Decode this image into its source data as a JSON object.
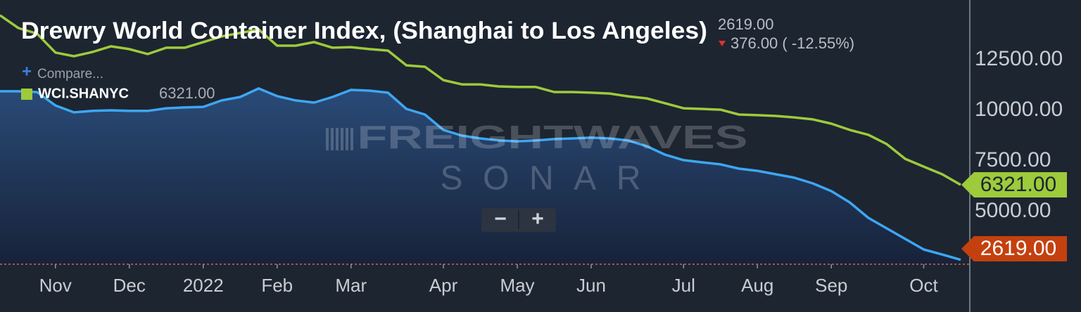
{
  "chart_data": {
    "type": "line",
    "title": "Drewry World Container Index, (Shanghai to Los Angeles)",
    "header_value": "2619.00",
    "change": "376.00 ( -12.55%)",
    "compare": "Compare...",
    "watermark": [
      "FREIGHTWAVES",
      "SONAR"
    ],
    "zoom_controls": [
      "−",
      "+"
    ],
    "categories": [
      null,
      null,
      null,
      "Nov",
      null,
      null,
      null,
      "Dec",
      null,
      null,
      null,
      "2022",
      null,
      null,
      null,
      "Feb",
      null,
      null,
      null,
      "Mar",
      null,
      null,
      null,
      null,
      "Apr",
      null,
      null,
      null,
      "May",
      null,
      null,
      null,
      "Jun",
      null,
      null,
      null,
      null,
      "Jul",
      null,
      null,
      null,
      "Aug",
      null,
      null,
      null,
      "Sep",
      null,
      null,
      null,
      null,
      "Oct",
      null,
      null
    ],
    "series": [
      {
        "name": "Drewry World Container Index, (Shanghai to Los Angeles)",
        "color": "#3ea6f2",
        "area": true,
        "last_value_label": "2619.00",
        "tag_color": "#c4400f",
        "values": [
          10940,
          10940,
          10900,
          10240,
          9900,
          9970,
          10000,
          9970,
          9970,
          10100,
          10140,
          10170,
          10490,
          10660,
          11080,
          10700,
          10490,
          10380,
          10660,
          11010,
          10970,
          10870,
          10070,
          9790,
          9030,
          8750,
          8610,
          8510,
          8470,
          8510,
          8580,
          8610,
          8650,
          8610,
          8510,
          8230,
          7810,
          7540,
          7430,
          7330,
          7120,
          7010,
          6840,
          6670,
          6390,
          6010,
          5450,
          4690,
          4170,
          3650,
          3130,
          2880,
          2619
        ]
      },
      {
        "name": "WCI.SHANYC",
        "color": "#9dcb3b",
        "area": false,
        "last_value_label": "6321.00",
        "tag_color": "#9dcb3b",
        "values": [
          14690,
          14060,
          13790,
          12850,
          12670,
          12880,
          13160,
          13020,
          12780,
          13090,
          13090,
          13370,
          13650,
          13820,
          13990,
          13190,
          13190,
          13370,
          13090,
          13120,
          13020,
          12950,
          12220,
          12150,
          11490,
          11280,
          11280,
          11180,
          11150,
          11150,
          10900,
          10900,
          10870,
          10830,
          10690,
          10590,
          10350,
          10100,
          10070,
          10030,
          9790,
          9760,
          9720,
          9650,
          9550,
          9340,
          9030,
          8790,
          8330,
          7600,
          7220,
          6840,
          6321
        ]
      }
    ],
    "ylim": [
      2400,
      15100
    ],
    "yticks": [
      {
        "value": 5000,
        "label": "5000.00"
      },
      {
        "value": 7500,
        "label": "7500.00"
      },
      {
        "value": 10000,
        "label": "10000.00"
      },
      {
        "value": 12500,
        "label": "12500.00"
      }
    ],
    "grid": false
  }
}
